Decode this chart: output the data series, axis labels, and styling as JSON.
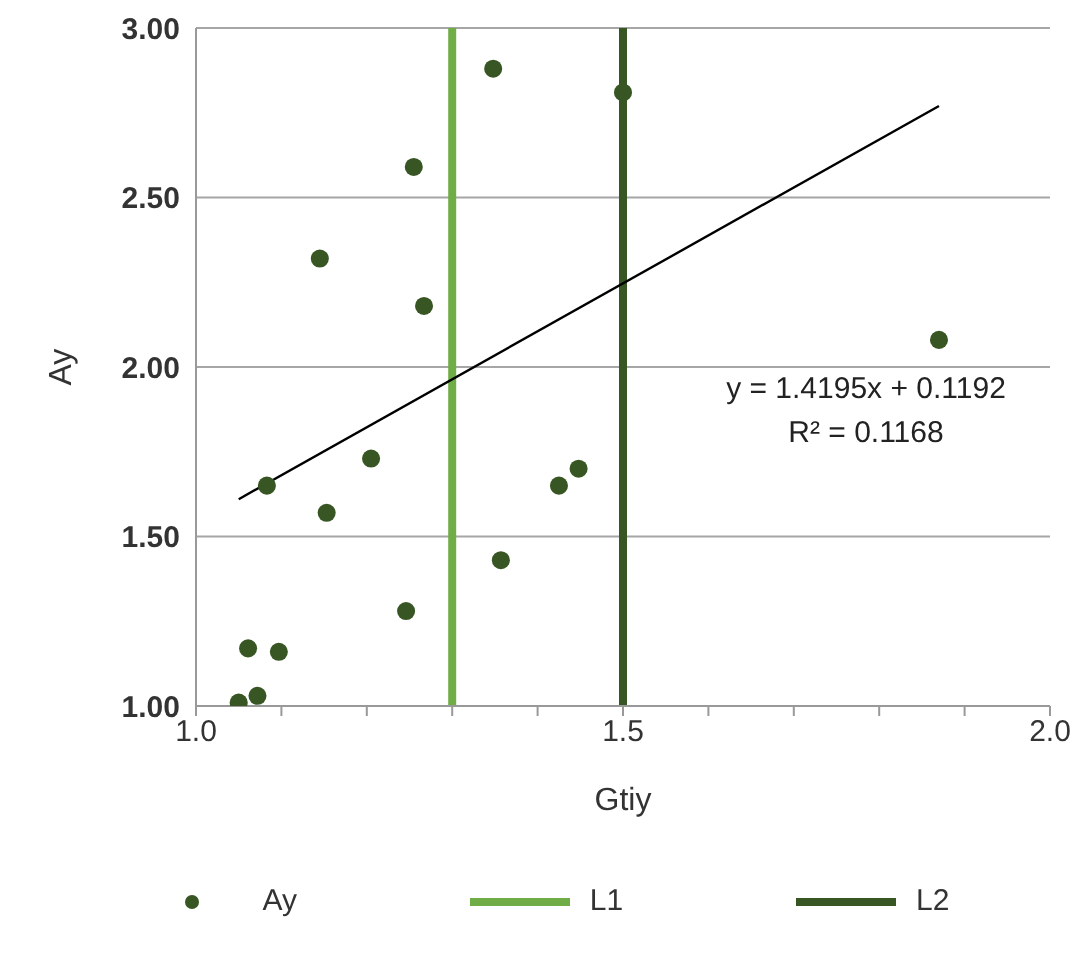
{
  "chart_data": {
    "type": "scatter",
    "xlabel": "Gtiy",
    "ylabel": "Ay",
    "xlim": [
      1,
      2
    ],
    "xticks": [
      {
        "value": 1,
        "label": "1.0"
      },
      {
        "value": 1.1,
        "label": null
      },
      {
        "value": 1.2,
        "label": null
      },
      {
        "value": 1.3,
        "label": null
      },
      {
        "value": 1.4,
        "label": null
      },
      {
        "value": 1.5,
        "label": "1.5"
      },
      {
        "value": 1.6,
        "label": null
      },
      {
        "value": 1.7,
        "label": null
      },
      {
        "value": 1.8,
        "label": null
      },
      {
        "value": 1.9,
        "label": null
      },
      {
        "value": 2,
        "label": "2.0"
      }
    ],
    "ylim": [
      1,
      3
    ],
    "yticks": [
      {
        "value": 1,
        "label": "1.00"
      },
      {
        "value": 1.5,
        "label": "1.50"
      },
      {
        "value": 2,
        "label": "2.00"
      },
      {
        "value": 2.5,
        "label": "2.50"
      },
      {
        "value": 3,
        "label": "3.00"
      }
    ],
    "grid": "y",
    "legend": "bottom",
    "marker": "circle",
    "series": [
      {
        "name": "Ay",
        "color": "#375623",
        "x": [
          1.05,
          1.072,
          1.061,
          1.097,
          1.083,
          1.145,
          1.153,
          1.205,
          1.246,
          1.255,
          1.267,
          1.348,
          1.357,
          1.425,
          1.448,
          1.5,
          1.87
        ],
        "values": [
          1.01,
          1.03,
          1.17,
          1.16,
          1.65,
          2.32,
          1.57,
          1.73,
          1.28,
          2.59,
          2.18,
          2.88,
          1.43,
          1.65,
          1.7,
          2.81,
          2.08
        ]
      },
      {
        "name": "L1",
        "type": "line",
        "marker": "none",
        "color": "#70ad47",
        "x": [
          1.3,
          1.3
        ],
        "values": [
          1,
          3
        ]
      },
      {
        "name": "L2",
        "type": "line",
        "marker": "none",
        "color": "#375623",
        "x": [
          1.5,
          1.5
        ],
        "values": [
          1,
          3
        ]
      },
      {
        "type": "line",
        "marker": "none",
        "color": "#000000",
        "x": [
          1.05,
          1.87
        ],
        "values": [
          1.61,
          2.77
        ]
      }
    ],
    "annotations": [
      "y = 1.4195x + 0.1192",
      "R² = 0.1168"
    ]
  }
}
